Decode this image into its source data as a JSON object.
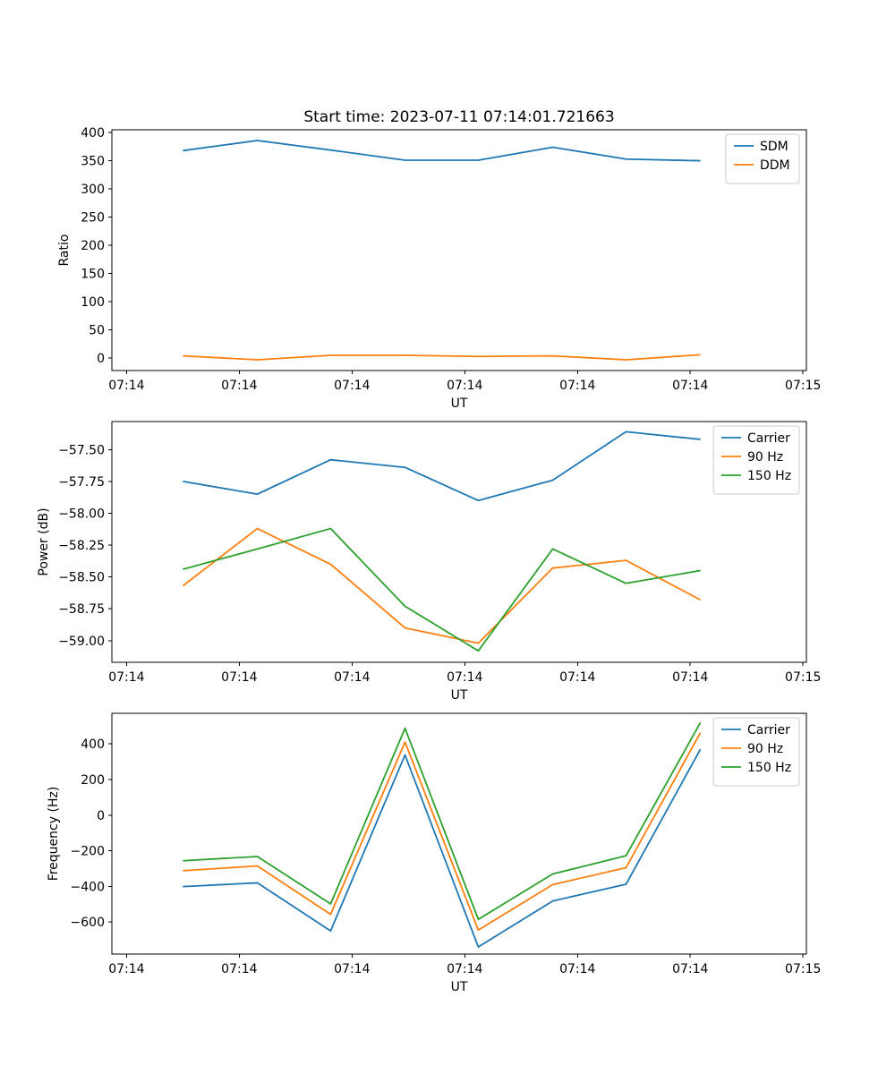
{
  "figure": {
    "title": "Start time: 2023-07-11 07:14:01.721663",
    "background": "#ffffff",
    "palette": {
      "blue": "#1f77b4",
      "orange": "#ff7f0e",
      "green": "#2ca02c"
    }
  },
  "chart_data": [
    {
      "type": "line",
      "title": "Start time: 2023-07-11 07:14:01.721663",
      "xlabel": "UT",
      "ylabel": "Ratio",
      "grid": false,
      "legend_loc": "upper right",
      "legend": [
        "SDM",
        "DDM"
      ],
      "xlim": [
        -1.3,
        60.3
      ],
      "ylim": [
        -22,
        405
      ],
      "x_seconds_after_0714": [
        5.0,
        11.6,
        18.1,
        24.7,
        31.2,
        37.8,
        44.3,
        50.9
      ],
      "x_ticks": [
        {
          "t": 0,
          "label": "07:14"
        },
        {
          "t": 10,
          "label": "07:14"
        },
        {
          "t": 20,
          "label": "07:14"
        },
        {
          "t": 30,
          "label": "07:14"
        },
        {
          "t": 40,
          "label": "07:14"
        },
        {
          "t": 50,
          "label": "07:14"
        },
        {
          "t": 60,
          "label": "07:15"
        }
      ],
      "y_ticks": [
        {
          "v": 0,
          "label": "0"
        },
        {
          "v": 50,
          "label": "50"
        },
        {
          "v": 100,
          "label": "100"
        },
        {
          "v": 150,
          "label": "150"
        },
        {
          "v": 200,
          "label": "200"
        },
        {
          "v": 250,
          "label": "250"
        },
        {
          "v": 300,
          "label": "300"
        },
        {
          "v": 350,
          "label": "350"
        },
        {
          "v": 400,
          "label": "400"
        }
      ],
      "series": [
        {
          "name": "SDM",
          "color": "#1f77b4",
          "values": [
            368,
            386,
            369,
            351,
            351,
            374,
            353,
            350
          ]
        },
        {
          "name": "DDM",
          "color": "#ff7f0e",
          "values": [
            4,
            -3,
            5,
            5,
            3,
            4,
            -3,
            6
          ]
        }
      ]
    },
    {
      "type": "line",
      "xlabel": "UT",
      "ylabel": "Power (dB)",
      "grid": false,
      "legend_loc": "upper right",
      "legend": [
        "Carrier",
        "90 Hz",
        "150 Hz"
      ],
      "xlim": [
        -1.3,
        60.3
      ],
      "ylim": [
        -59.17,
        -57.28
      ],
      "x_seconds_after_0714": [
        5.0,
        11.6,
        18.1,
        24.7,
        31.2,
        37.8,
        44.3,
        50.9
      ],
      "x_ticks": [
        {
          "t": 0,
          "label": "07:14"
        },
        {
          "t": 10,
          "label": "07:14"
        },
        {
          "t": 20,
          "label": "07:14"
        },
        {
          "t": 30,
          "label": "07:14"
        },
        {
          "t": 40,
          "label": "07:14"
        },
        {
          "t": 50,
          "label": "07:14"
        },
        {
          "t": 60,
          "label": "07:15"
        }
      ],
      "y_ticks": [
        {
          "v": -59.0,
          "label": "−59.00"
        },
        {
          "v": -58.75,
          "label": "−58.75"
        },
        {
          "v": -58.5,
          "label": "−58.50"
        },
        {
          "v": -58.25,
          "label": "−58.25"
        },
        {
          "v": -58.0,
          "label": "−58.00"
        },
        {
          "v": -57.75,
          "label": "−57.75"
        },
        {
          "v": -57.5,
          "label": "−57.50"
        }
      ],
      "series": [
        {
          "name": "Carrier",
          "color": "#1f77b4",
          "values": [
            -57.75,
            -57.85,
            -57.58,
            -57.64,
            -57.9,
            -57.74,
            -57.36,
            -57.42
          ]
        },
        {
          "name": "90 Hz",
          "color": "#ff7f0e",
          "values": [
            -58.57,
            -58.12,
            -58.4,
            -58.9,
            -59.02,
            -58.43,
            -58.37,
            -58.68
          ]
        },
        {
          "name": "150 Hz",
          "color": "#2ca02c",
          "values": [
            -58.44,
            -58.28,
            -58.12,
            -58.73,
            -59.08,
            -58.28,
            -58.55,
            -58.45
          ]
        }
      ]
    },
    {
      "type": "line",
      "xlabel": "UT",
      "ylabel": "Frequency (Hz)",
      "grid": false,
      "legend_loc": "upper right",
      "legend": [
        "Carrier",
        "90 Hz",
        "150 Hz"
      ],
      "xlim": [
        -1.3,
        60.3
      ],
      "ylim": [
        -780,
        572
      ],
      "x_seconds_after_0714": [
        5.0,
        11.6,
        18.1,
        24.7,
        31.2,
        37.8,
        44.3,
        50.9
      ],
      "x_ticks": [
        {
          "t": 0,
          "label": "07:14"
        },
        {
          "t": 10,
          "label": "07:14"
        },
        {
          "t": 20,
          "label": "07:14"
        },
        {
          "t": 30,
          "label": "07:14"
        },
        {
          "t": 40,
          "label": "07:14"
        },
        {
          "t": 50,
          "label": "07:14"
        },
        {
          "t": 60,
          "label": "07:15"
        }
      ],
      "y_ticks": [
        {
          "v": -600,
          "label": "−600"
        },
        {
          "v": -400,
          "label": "−400"
        },
        {
          "v": -200,
          "label": "−200"
        },
        {
          "v": 0,
          "label": "0"
        },
        {
          "v": 200,
          "label": "200"
        },
        {
          "v": 400,
          "label": "400"
        }
      ],
      "series": [
        {
          "name": "Carrier",
          "color": "#1f77b4",
          "values": [
            -401,
            -380,
            -650,
            338,
            -740,
            -482,
            -388,
            370
          ]
        },
        {
          "name": "90 Hz",
          "color": "#ff7f0e",
          "values": [
            -312,
            -285,
            -557,
            410,
            -645,
            -390,
            -295,
            463
          ]
        },
        {
          "name": "150 Hz",
          "color": "#2ca02c",
          "values": [
            -256,
            -232,
            -498,
            488,
            -585,
            -330,
            -228,
            520
          ]
        }
      ]
    }
  ]
}
